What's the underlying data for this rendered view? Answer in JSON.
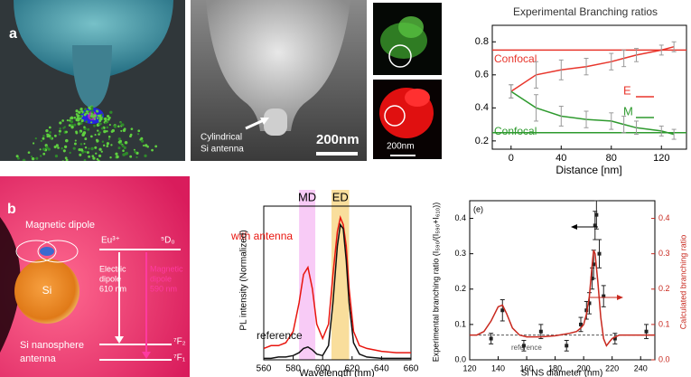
{
  "figure": {
    "panel_a": "a",
    "panel_b": "b",
    "sem_annotation": [
      "Cylindrical",
      "Si antenna"
    ],
    "scale_sem": "200nm",
    "scale_small": "200nm",
    "dipole_label": "Magnetic dipole",
    "ion": "Eu³⁺",
    "level_5d0": "⁵D₀",
    "ed_transition": [
      "Electric",
      "dipole",
      "610 nm"
    ],
    "md_transition": [
      "Magnetic",
      "dipole",
      "590 nm"
    ],
    "si": "Si",
    "level_7f2": "⁷F₂",
    "level_7f1": "⁷F₁",
    "antenna": [
      "Si nanosphere",
      "antenna"
    ]
  },
  "chart_data": [
    {
      "type": "line",
      "title": "Experimental Branching ratios",
      "x_label": "Distance [nm]",
      "xlim": [
        -15,
        140
      ],
      "ylim": [
        0.15,
        0.9
      ],
      "xticks": [
        0,
        40,
        80,
        120
      ],
      "yticks": [
        0.2,
        0.4,
        0.6,
        0.8
      ],
      "x": [
        0,
        20,
        40,
        60,
        80,
        90,
        100,
        120,
        130
      ],
      "series": [
        {
          "name": "E",
          "color": "#e8352b",
          "values": [
            0.5,
            0.6,
            0.63,
            0.65,
            0.68,
            0.7,
            0.72,
            0.75,
            0.77
          ],
          "errors": [
            0.04,
            0.08,
            0.06,
            0.05,
            0.05,
            0.05,
            0.04,
            0.03,
            0.03
          ]
        },
        {
          "name": "M",
          "color": "#2e9a2e",
          "values": [
            0.5,
            0.4,
            0.35,
            0.33,
            0.32,
            0.3,
            0.28,
            0.26,
            0.24
          ],
          "errors": [
            0.04,
            0.08,
            0.06,
            0.05,
            0.05,
            0.05,
            0.04,
            0.03,
            0.03
          ]
        }
      ],
      "error_color": "#9a9a9a",
      "hlines": [
        {
          "name": "Confocal",
          "value": 0.75,
          "color": "#e8352b"
        },
        {
          "name": "Confocal",
          "value": 0.25,
          "color": "#2e9a2e"
        }
      ]
    },
    {
      "type": "line",
      "x_label": "Wavelength (nm)",
      "y_label": "PL intensity (Normalized)",
      "xlim": [
        560,
        660
      ],
      "ylim": [
        0,
        1.08
      ],
      "xticks": [
        560,
        580,
        600,
        620,
        640,
        660
      ],
      "bands": [
        {
          "label": "MD",
          "range": [
            584,
            595
          ],
          "color": "#f4a8f0"
        },
        {
          "label": "ED",
          "range": [
            606,
            618
          ],
          "color": "#f5c85a"
        }
      ],
      "x": [
        560,
        565,
        570,
        575,
        580,
        584,
        587,
        590,
        593,
        596,
        600,
        604,
        607,
        610,
        612,
        614,
        616,
        618,
        621,
        625,
        630,
        640,
        650,
        660
      ],
      "series": [
        {
          "name": "with antenna",
          "color": "#e8150e",
          "values": [
            0.08,
            0.1,
            0.1,
            0.12,
            0.2,
            0.4,
            0.6,
            0.65,
            0.5,
            0.25,
            0.15,
            0.25,
            0.6,
            0.9,
            1.0,
            0.95,
            0.8,
            0.5,
            0.2,
            0.1,
            0.08,
            0.06,
            0.05,
            0.05
          ]
        },
        {
          "name": "reference",
          "color": "#111111",
          "values": [
            0.01,
            0.01,
            0.02,
            0.02,
            0.03,
            0.05,
            0.08,
            0.09,
            0.07,
            0.04,
            0.03,
            0.1,
            0.4,
            0.8,
            0.95,
            0.92,
            0.7,
            0.4,
            0.12,
            0.04,
            0.02,
            0.01,
            0.01,
            0.01
          ]
        }
      ]
    },
    {
      "type": "scatter",
      "tag": "(e)",
      "x_label": "Si NS diameter (nm)",
      "y_label": "Experimental branching ratio (I₅₉₀/(I₅₉₀+I₆₁₀))",
      "y2_label": "Calculated branching ratio",
      "xlim": [
        120,
        250
      ],
      "ylim": [
        0,
        0.45
      ],
      "y2lim": [
        0,
        0.45
      ],
      "xticks": [
        120,
        140,
        160,
        180,
        200,
        220,
        240
      ],
      "yticks": [
        {
          "value": 0,
          "label": "0.0"
        },
        0.1,
        0.2,
        0.3,
        0.4
      ],
      "y2ticks": [
        {
          "value": 0,
          "label": "0.0"
        },
        0.1,
        0.2,
        0.3,
        0.4
      ],
      "series": [
        {
          "color": "#222222",
          "marker": "square",
          "line": false,
          "x": [
            135,
            143,
            158,
            170,
            188,
            198,
            202,
            204,
            206,
            207,
            208,
            209,
            211,
            214,
            222,
            244
          ],
          "values": [
            0.06,
            0.14,
            0.04,
            0.08,
            0.04,
            0.1,
            0.14,
            0.16,
            0.23,
            0.27,
            0.38,
            0.41,
            0.3,
            0.18,
            0.06,
            0.08
          ],
          "errors": [
            0.015,
            0.03,
            0.015,
            0.02,
            0.015,
            0.02,
            0.025,
            0.03,
            0.03,
            0.04,
            0.04,
            0.04,
            0.04,
            0.03,
            0.015,
            0.02
          ]
        },
        {
          "color": "#c8281e",
          "axis": "y2",
          "x": [
            120,
            125,
            130,
            135,
            140,
            143,
            146,
            150,
            155,
            160,
            170,
            180,
            190,
            195,
            198,
            200,
            202,
            204,
            206,
            207,
            208,
            210,
            212,
            214,
            216,
            218,
            220,
            225,
            230,
            240,
            250
          ],
          "values": [
            0.07,
            0.07,
            0.08,
            0.11,
            0.15,
            0.155,
            0.13,
            0.09,
            0.07,
            0.065,
            0.065,
            0.068,
            0.075,
            0.08,
            0.09,
            0.1,
            0.13,
            0.18,
            0.27,
            0.31,
            0.3,
            0.22,
            0.12,
            0.06,
            0.04,
            0.05,
            0.06,
            0.07,
            0.07,
            0.07,
            0.07
          ]
        }
      ],
      "hlines": [
        {
          "name": "reference",
          "value": 0.07,
          "color": "#555555",
          "dash": true
        }
      ]
    }
  ]
}
